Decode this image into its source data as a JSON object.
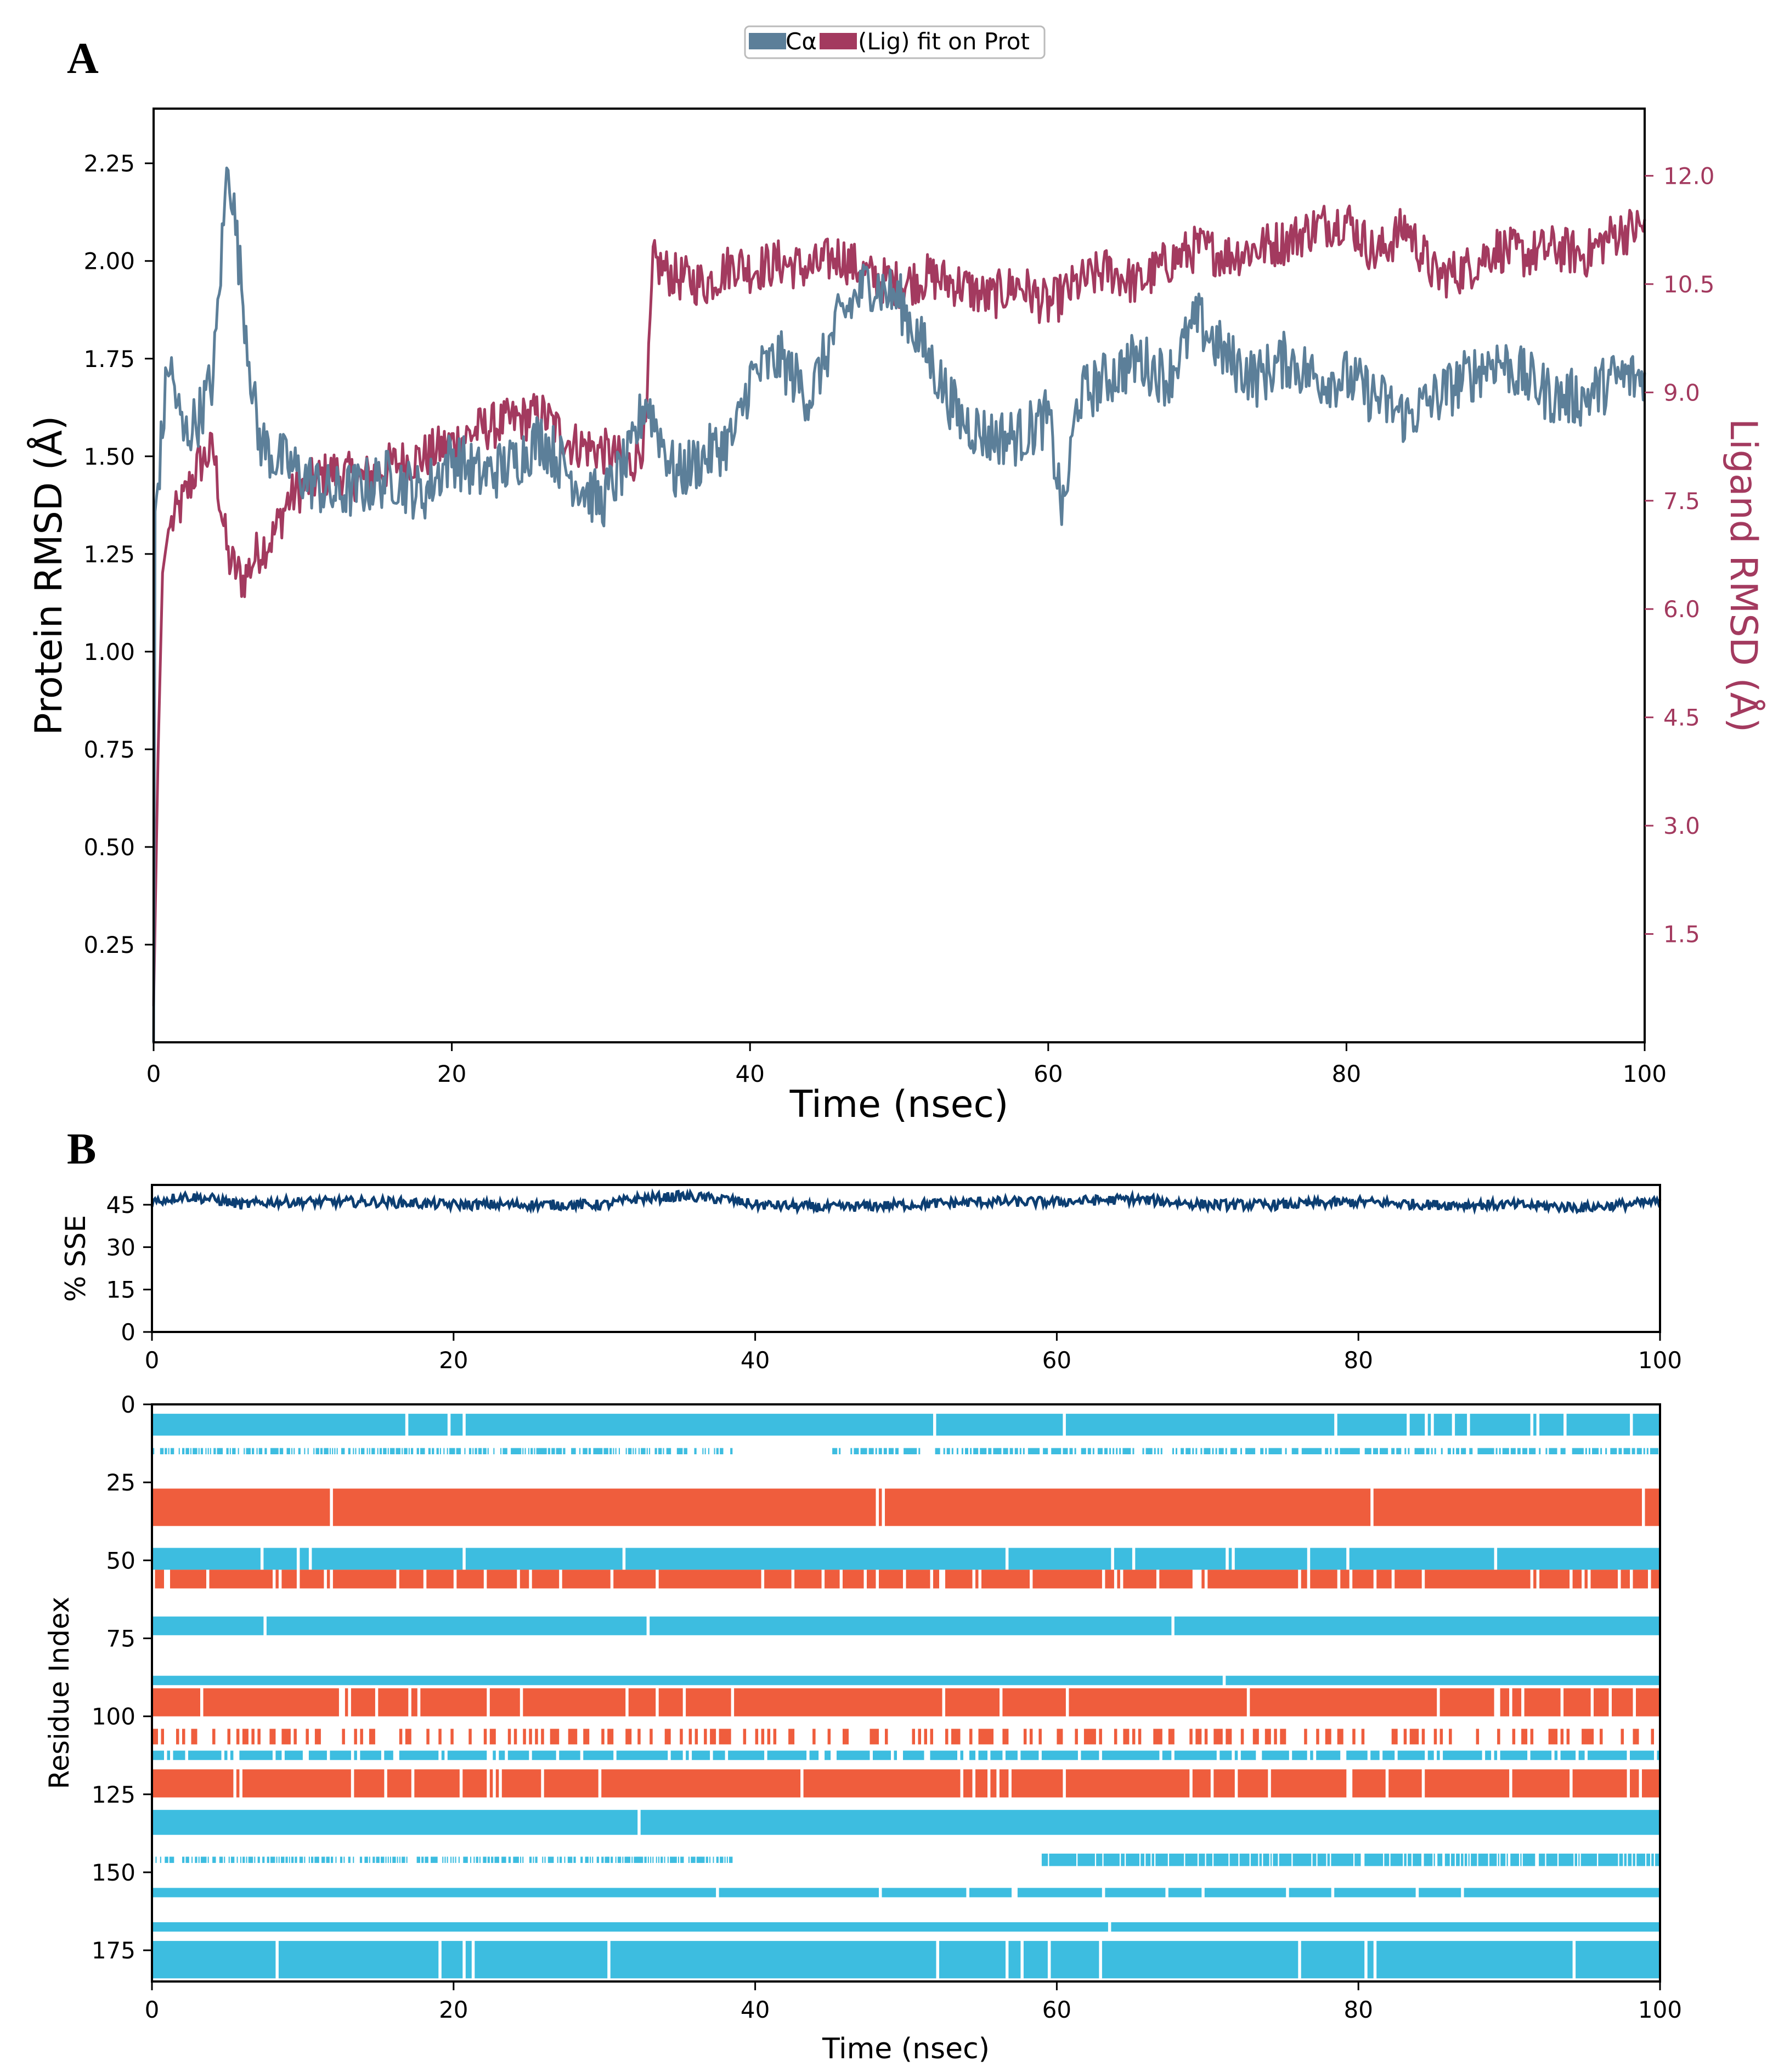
{
  "panels": {
    "a_label": "A",
    "b_label": "B"
  },
  "colors": {
    "protein": "#5c7f99",
    "ligand": "#a33a5f",
    "sse": "#0c3e72",
    "helix": "#ef5d3d",
    "strand": "#3dbde0",
    "axis": "#000000"
  },
  "chart_data": [
    {
      "id": "rmsd",
      "type": "line",
      "title": "",
      "legend": {
        "placement": "top-center",
        "entries": [
          "Cα",
          "(Lig) fit on Prot"
        ]
      },
      "xlabel": "Time (nsec)",
      "ylabel": "Protein RMSD (Å)",
      "y2label": "Ligand RMSD (Å)",
      "xlim": [
        0,
        100
      ],
      "ylim": [
        0,
        2.39
      ],
      "y2lim": [
        0,
        12.93
      ],
      "xticks": [
        0,
        20,
        40,
        60,
        80,
        100
      ],
      "yticks": [
        0.25,
        0.5,
        0.75,
        1.0,
        1.25,
        1.5,
        1.75,
        2.0,
        2.25
      ],
      "y2ticks": [
        1.5,
        3.0,
        4.5,
        6.0,
        7.5,
        9.0,
        10.5,
        12.0
      ],
      "series": [
        {
          "name": "Cα",
          "axis": "left",
          "x": [
            0,
            1,
            2,
            3,
            4,
            5,
            6,
            7,
            8,
            9,
            10,
            12,
            14,
            16,
            18,
            20,
            22,
            24,
            26,
            28,
            30,
            32,
            33,
            35,
            37,
            39,
            40,
            42,
            44,
            46,
            48,
            50,
            52,
            54,
            56,
            58,
            60,
            61,
            62,
            64,
            66,
            68,
            70,
            72,
            74,
            76,
            78,
            80,
            82,
            84,
            86,
            88,
            90,
            92,
            94,
            96,
            98,
            100
          ],
          "y": [
            1.3,
            1.75,
            1.55,
            1.6,
            1.7,
            2.27,
            1.9,
            1.55,
            1.5,
            1.48,
            1.45,
            1.4,
            1.42,
            1.45,
            1.4,
            1.5,
            1.45,
            1.48,
            1.55,
            1.45,
            1.38,
            1.5,
            1.65,
            1.45,
            1.5,
            1.55,
            1.7,
            1.75,
            1.65,
            1.85,
            1.95,
            1.9,
            1.75,
            1.6,
            1.55,
            1.55,
            1.6,
            1.35,
            1.65,
            1.7,
            1.75,
            1.7,
            1.85,
            1.75,
            1.7,
            1.75,
            1.7,
            1.7,
            1.65,
            1.6,
            1.65,
            1.7,
            1.75,
            1.7,
            1.65,
            1.65,
            1.7,
            1.7
          ]
        },
        {
          "name": "(Lig) fit on Prot",
          "axis": "right",
          "x": [
            0,
            0.3,
            0.6,
            1,
            1.5,
            2,
            3,
            4,
            5,
            6,
            7,
            8,
            9,
            10,
            12,
            14,
            16,
            18,
            20,
            22,
            24,
            26,
            28,
            30,
            32,
            33,
            33.5,
            35,
            37,
            39,
            40,
            42,
            44,
            46,
            48,
            50,
            52,
            54,
            56,
            58,
            60,
            62,
            64,
            66,
            68,
            70,
            72,
            74,
            76,
            78,
            80,
            82,
            84,
            86,
            88,
            90,
            92,
            94,
            96,
            98,
            100
          ],
          "y": [
            0.5,
            4.0,
            6.5,
            7.1,
            7.3,
            7.5,
            8.0,
            8.2,
            6.7,
            6.4,
            6.8,
            7.0,
            7.5,
            7.7,
            7.9,
            7.8,
            8.0,
            8.1,
            8.3,
            8.5,
            8.6,
            8.7,
            8.3,
            8.2,
            8.0,
            8.4,
            10.8,
            10.6,
            10.5,
            10.8,
            10.7,
            10.8,
            10.7,
            10.9,
            10.6,
            10.5,
            10.6,
            10.5,
            10.3,
            10.5,
            10.2,
            10.5,
            10.7,
            10.5,
            10.8,
            11.0,
            10.9,
            11.0,
            11.1,
            11.3,
            11.4,
            10.9,
            11.3,
            10.6,
            10.7,
            11.0,
            10.9,
            11.0,
            10.9,
            11.2,
            11.3
          ]
        }
      ]
    },
    {
      "id": "sse_percent",
      "type": "line",
      "title": "",
      "xlabel": "",
      "ylabel": "% SSE",
      "xlim": [
        0,
        100
      ],
      "ylim": [
        0,
        52
      ],
      "xticks": [
        0,
        20,
        40,
        60,
        80,
        100
      ],
      "yticks": [
        0,
        15,
        30,
        45
      ],
      "series": [
        {
          "name": "% SSE",
          "x": [
            0,
            2,
            4,
            6,
            8,
            10,
            15,
            20,
            25,
            30,
            32,
            35,
            38,
            40,
            45,
            50,
            55,
            60,
            65,
            70,
            75,
            80,
            85,
            90,
            95,
            100
          ],
          "y": [
            46,
            48,
            47,
            45,
            46,
            46,
            46,
            45,
            45,
            45,
            47,
            48,
            47,
            45,
            44,
            45,
            46,
            46,
            47,
            45,
            45,
            46,
            45,
            45,
            44,
            46
          ]
        }
      ]
    },
    {
      "id": "sse_timeline",
      "type": "heatmap",
      "title": "",
      "xlabel": "Time (nsec)",
      "ylabel": "Residue Index",
      "xlim": [
        0,
        100
      ],
      "ylim": [
        185,
        0
      ],
      "xticks": [
        0,
        20,
        40,
        60,
        80,
        100
      ],
      "yticks": [
        0,
        25,
        50,
        75,
        100,
        125,
        150,
        175
      ],
      "bands": [
        {
          "type": "strand",
          "start": 3,
          "end": 10,
          "t0": 0,
          "t1": 100,
          "occupancy": 0.97
        },
        {
          "type": "strand",
          "start": 14,
          "end": 16,
          "t0": 0,
          "t1": 38.5,
          "occupancy": 0.55
        },
        {
          "type": "strand",
          "start": 14,
          "end": 16,
          "t0": 45,
          "t1": 100,
          "occupancy": 0.6
        },
        {
          "type": "helix",
          "start": 27,
          "end": 39,
          "t0": 0,
          "t1": 100,
          "occupancy": 0.99
        },
        {
          "type": "strand",
          "start": 46,
          "end": 53,
          "t0": 0,
          "t1": 100,
          "occupancy": 0.98
        },
        {
          "type": "helix",
          "start": 53,
          "end": 59,
          "t0": 0,
          "t1": 100,
          "occupancy": 0.92
        },
        {
          "type": "strand",
          "start": 68,
          "end": 74,
          "t0": 0,
          "t1": 100,
          "occupancy": 0.99
        },
        {
          "type": "strand",
          "start": 87,
          "end": 90,
          "t0": 0,
          "t1": 100,
          "occupancy": 0.99
        },
        {
          "type": "helix",
          "start": 91,
          "end": 100,
          "t0": 0,
          "t1": 100,
          "occupancy": 0.95
        },
        {
          "type": "helix",
          "start": 104,
          "end": 109,
          "t0": 0,
          "t1": 100,
          "occupancy": 0.35
        },
        {
          "type": "strand",
          "start": 111,
          "end": 114,
          "t0": 0,
          "t1": 100,
          "occupancy": 0.85
        },
        {
          "type": "helix",
          "start": 117,
          "end": 126,
          "t0": 0,
          "t1": 100,
          "occupancy": 0.95
        },
        {
          "type": "strand",
          "start": 130,
          "end": 138,
          "t0": 0,
          "t1": 100,
          "occupancy": 0.99
        },
        {
          "type": "strand",
          "start": 145,
          "end": 147,
          "t0": 0,
          "t1": 38.5,
          "occupancy": 0.55
        },
        {
          "type": "strand",
          "start": 144,
          "end": 148,
          "t0": 59,
          "t1": 100,
          "occupancy": 0.85
        },
        {
          "type": "strand",
          "start": 155,
          "end": 158,
          "t0": 0,
          "t1": 100,
          "occupancy": 0.97
        },
        {
          "type": "strand",
          "start": 166,
          "end": 169,
          "t0": 0,
          "t1": 100,
          "occupancy": 0.99
        },
        {
          "type": "strand",
          "start": 172,
          "end": 184,
          "t0": 0,
          "t1": 100,
          "occupancy": 0.97
        }
      ]
    }
  ]
}
